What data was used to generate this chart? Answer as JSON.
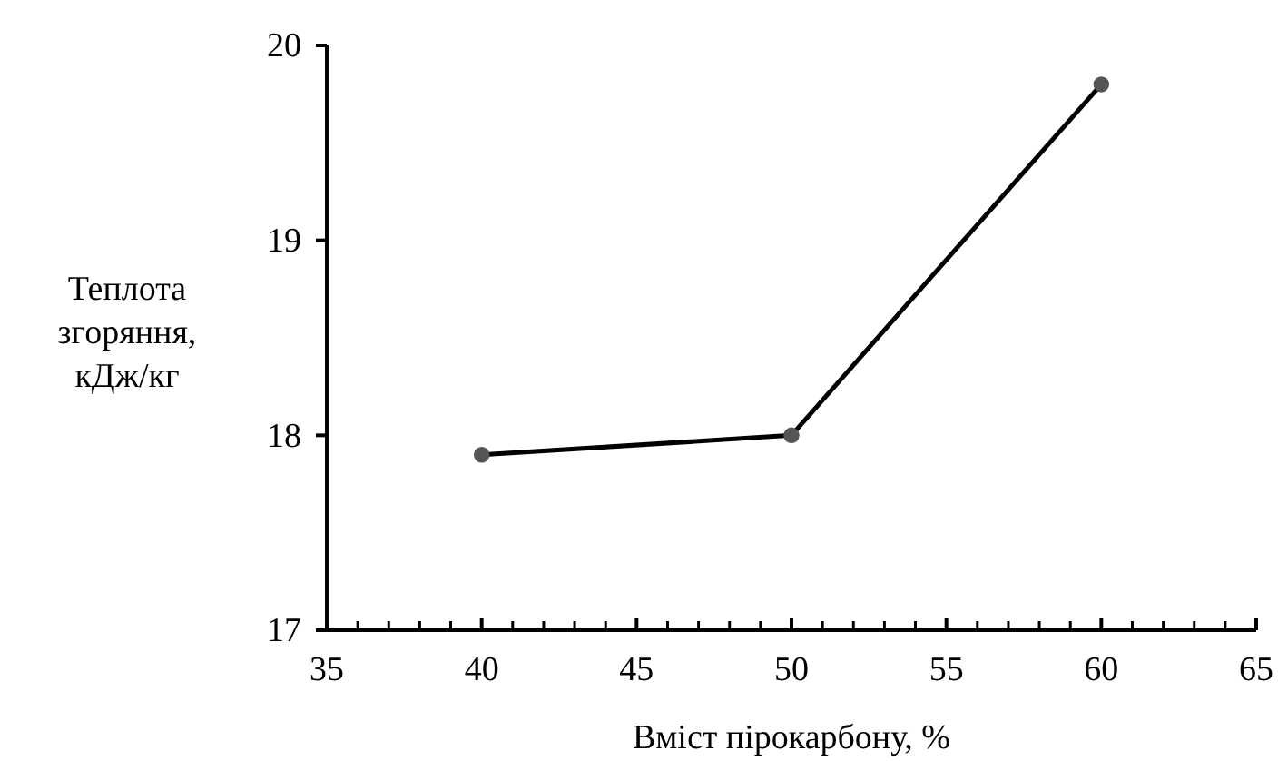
{
  "chart_data": {
    "type": "line",
    "xlabel": "Вміст пірокарбону, %",
    "ylabel": "Теплота згоряння, кДж/кг",
    "x": [
      40,
      50,
      60
    ],
    "series": [
      {
        "color": "#000000",
        "values": [
          17.9,
          18.0,
          19.8
        ]
      }
    ],
    "xlim": [
      35,
      65
    ],
    "xticks": [
      35,
      40,
      45,
      50,
      55,
      60,
      65
    ],
    "ylim": [
      17,
      20
    ],
    "yticks": [
      17,
      18,
      19,
      20
    ],
    "marker": "circle",
    "line_style": "solid"
  }
}
